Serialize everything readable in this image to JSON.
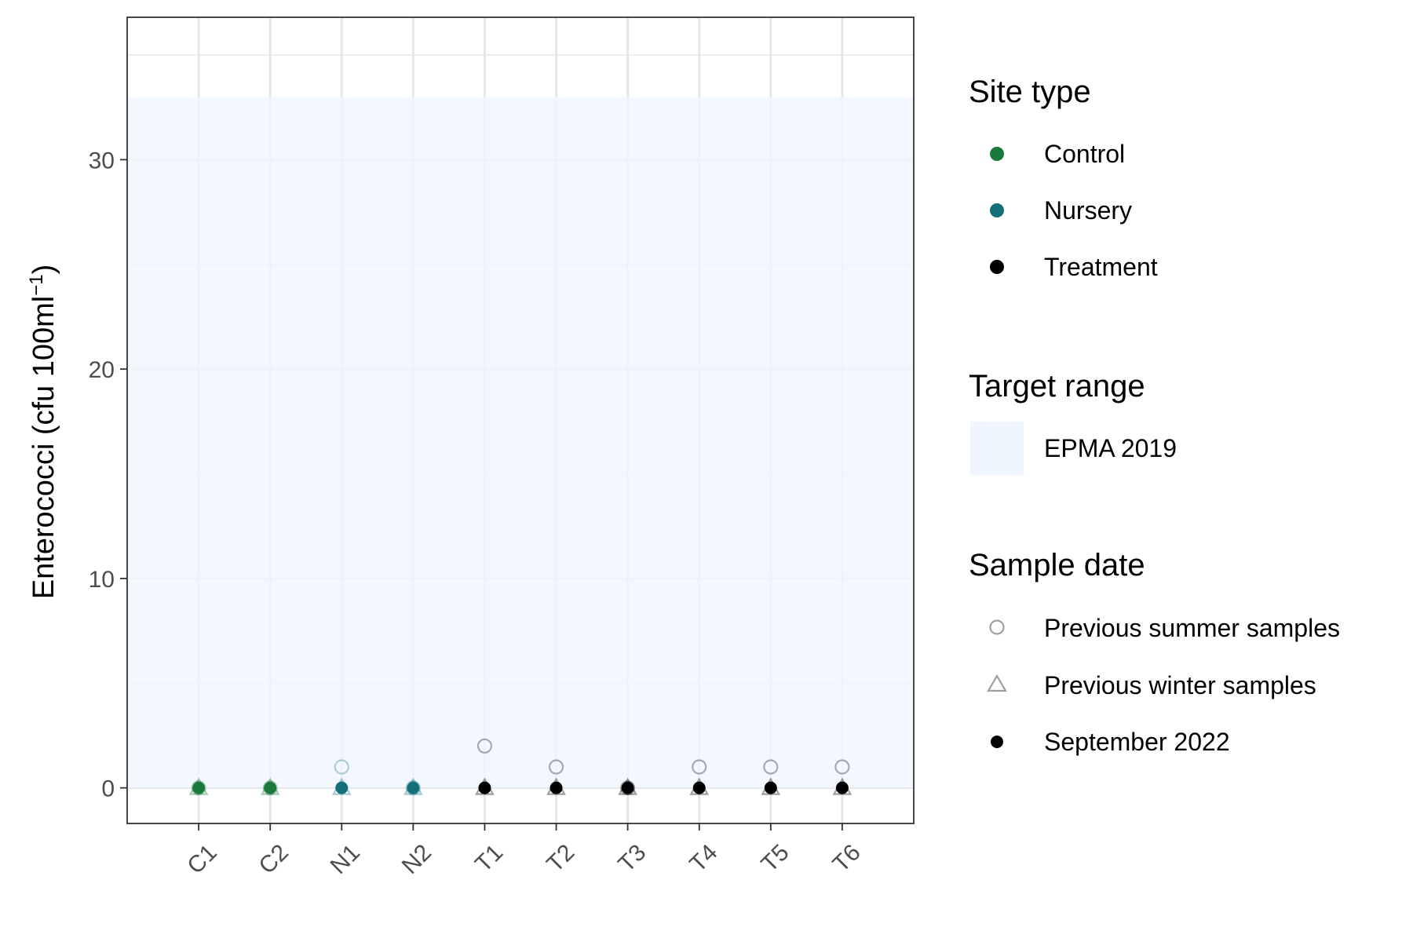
{
  "chart_data": {
    "type": "scatter",
    "ylabel": "Enterococci (cfu 100ml",
    "ylabel_superscript": "−1",
    "ylabel_close": ")",
    "categories": [
      "C1",
      "C2",
      "N1",
      "N2",
      "T1",
      "T2",
      "T3",
      "T4",
      "T5",
      "T6"
    ],
    "site_type": [
      "Control",
      "Control",
      "Nursery",
      "Nursery",
      "Treatment",
      "Treatment",
      "Treatment",
      "Treatment",
      "Treatment",
      "Treatment"
    ],
    "ylim": [
      -1.7,
      36.8
    ],
    "yticks": [
      0,
      10,
      20,
      30
    ],
    "minor_yticks": [
      5,
      15,
      25,
      35
    ],
    "target_range": {
      "name": "EPMA 2019",
      "ymin": 0,
      "ymax": 33
    },
    "series": [
      {
        "name": "Previous summer samples",
        "shape": "open-circle",
        "values": [
          0,
          0,
          1,
          0,
          2,
          1,
          0,
          1,
          1,
          1
        ]
      },
      {
        "name": "Previous winter samples",
        "shape": "open-triangle",
        "values": [
          0,
          0,
          0,
          0,
          0,
          0,
          0,
          0,
          0,
          0
        ]
      },
      {
        "name": "September 2022",
        "shape": "filled-circle",
        "values": [
          0,
          0,
          0,
          0,
          0,
          0,
          0,
          0,
          0,
          0
        ]
      }
    ],
    "grid": true,
    "legend_position": "right"
  },
  "colors": {
    "Control": "#1a7a3c",
    "Nursery": "#137078",
    "Treatment": "#000000",
    "target_fill": "#f0f6ff",
    "grid": "#e3e5ea",
    "legend_grey": "#9e9e9e"
  },
  "legend": {
    "site_type": {
      "title": "Site type",
      "items": [
        "Control",
        "Nursery",
        "Treatment"
      ]
    },
    "target_range": {
      "title": "Target range",
      "items": [
        "EPMA 2019"
      ]
    },
    "sample_date": {
      "title": "Sample date",
      "items": [
        "Previous summer samples",
        "Previous winter samples",
        "September 2022"
      ]
    }
  }
}
